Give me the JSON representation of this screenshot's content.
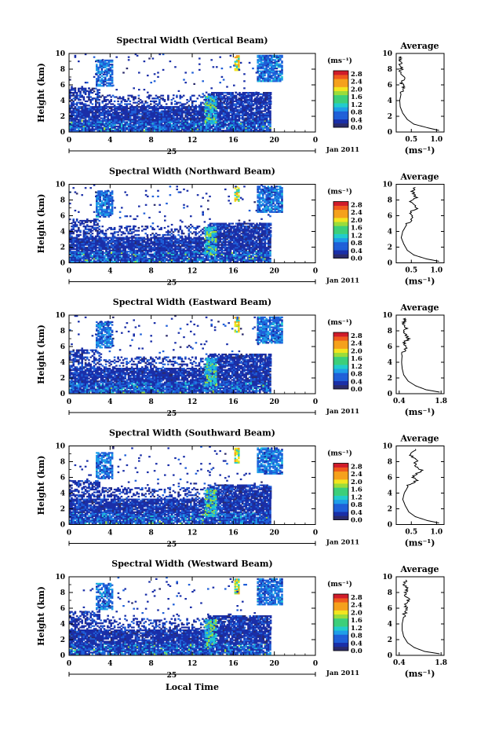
{
  "figure": {
    "xlabel_bottom": "Local Time",
    "date_label": "Jan 2011",
    "day_label": "25",
    "ylabel": "Height (km)",
    "x_ticks": [
      "0",
      "4",
      "8",
      "12",
      "16",
      "20",
      "0"
    ],
    "y_ticks": [
      "0",
      "2",
      "4",
      "6",
      "8",
      "10"
    ],
    "colorbar_unit": "(ms⁻¹)",
    "colorbar_ticks": [
      "0.0",
      "0.4",
      "0.8",
      "1.2",
      "1.6",
      "2.0",
      "2.4",
      "2.8"
    ],
    "avg_title": "Average",
    "avg_xlabel": "(ms⁻¹)",
    "colors": {
      "colormap": [
        "#2b2b6b",
        "#1a2fa8",
        "#1f5fd8",
        "#1f9ee8",
        "#22cccc",
        "#3ccf7a",
        "#9bdc3a",
        "#f2e51f",
        "#f5a11c",
        "#ef5a1d",
        "#d01c2a"
      ],
      "background_mid": "#2f3fb8",
      "background_low": "#3d8fe0"
    }
  },
  "chart_data": [
    {
      "type": "heatmap",
      "title": "Spectral Width (Vertical Beam)",
      "xlabel": "",
      "ylabel": "Height (km)",
      "xlim": [
        0,
        24
      ],
      "ylim": [
        0,
        10
      ],
      "clim": [
        0.0,
        2.8
      ],
      "average": {
        "title": "Average",
        "x_ticks": [
          "0.5",
          "1.0"
        ],
        "xlim": [
          0.2,
          1.15
        ],
        "profile": [
          [
            1.05,
            0.2
          ],
          [
            0.85,
            0.5
          ],
          [
            0.55,
            1.0
          ],
          [
            0.42,
            1.6
          ],
          [
            0.33,
            2.4
          ],
          [
            0.28,
            3.2
          ],
          [
            0.27,
            4.0
          ],
          [
            0.3,
            5.0
          ],
          [
            0.35,
            5.6
          ],
          [
            0.3,
            6.2
          ],
          [
            0.38,
            6.8
          ],
          [
            0.28,
            7.5
          ],
          [
            0.32,
            8.2
          ],
          [
            0.26,
            9.0
          ],
          [
            0.3,
            9.6
          ]
        ]
      }
    },
    {
      "type": "heatmap",
      "title": "Spectral Width (Northward Beam)",
      "xlabel": "",
      "ylabel": "Height (km)",
      "xlim": [
        0,
        24
      ],
      "ylim": [
        0,
        10
      ],
      "clim": [
        0.0,
        2.8
      ],
      "average": {
        "title": "Average",
        "x_ticks": [
          "0.5",
          "1.0"
        ],
        "xlim": [
          0.2,
          1.15
        ],
        "profile": [
          [
            1.05,
            0.2
          ],
          [
            0.8,
            0.5
          ],
          [
            0.55,
            1.0
          ],
          [
            0.42,
            1.6
          ],
          [
            0.35,
            2.4
          ],
          [
            0.3,
            3.2
          ],
          [
            0.33,
            4.0
          ],
          [
            0.42,
            5.0
          ],
          [
            0.55,
            5.8
          ],
          [
            0.48,
            6.4
          ],
          [
            0.62,
            7.0
          ],
          [
            0.5,
            7.8
          ],
          [
            0.6,
            8.4
          ],
          [
            0.52,
            9.0
          ],
          [
            0.58,
            9.6
          ]
        ]
      }
    },
    {
      "type": "heatmap",
      "title": "Spectral Width (Eastward Beam)",
      "xlabel": "",
      "ylabel": "Height (km)",
      "xlim": [
        0,
        24
      ],
      "ylim": [
        0,
        10
      ],
      "clim": [
        0.0,
        2.8
      ],
      "average": {
        "title": "Average",
        "x_ticks": [
          "0.4",
          "1.8"
        ],
        "xlim": [
          0.3,
          1.9
        ],
        "profile": [
          [
            1.75,
            0.2
          ],
          [
            1.3,
            0.5
          ],
          [
            0.95,
            1.0
          ],
          [
            0.7,
            1.6
          ],
          [
            0.55,
            2.4
          ],
          [
            0.5,
            3.2
          ],
          [
            0.48,
            4.0
          ],
          [
            0.5,
            5.0
          ],
          [
            0.62,
            5.8
          ],
          [
            0.55,
            6.4
          ],
          [
            0.7,
            7.0
          ],
          [
            0.58,
            7.8
          ],
          [
            0.65,
            8.4
          ],
          [
            0.55,
            9.0
          ],
          [
            0.62,
            9.6
          ]
        ]
      }
    },
    {
      "type": "heatmap",
      "title": "Spectral Width (Southward Beam)",
      "xlabel": "",
      "ylabel": "Height (km)",
      "xlim": [
        0,
        24
      ],
      "ylim": [
        0,
        10
      ],
      "clim": [
        0.0,
        2.8
      ],
      "average": {
        "title": "Average",
        "x_ticks": [
          "0.5",
          "1.0"
        ],
        "xlim": [
          0.2,
          1.15
        ],
        "profile": [
          [
            1.05,
            0.2
          ],
          [
            0.82,
            0.5
          ],
          [
            0.58,
            1.0
          ],
          [
            0.45,
            1.6
          ],
          [
            0.38,
            2.4
          ],
          [
            0.33,
            3.2
          ],
          [
            0.36,
            4.0
          ],
          [
            0.45,
            5.0
          ],
          [
            0.6,
            5.6
          ],
          [
            0.52,
            6.2
          ],
          [
            0.72,
            6.8
          ],
          [
            0.55,
            7.5
          ],
          [
            0.62,
            8.2
          ],
          [
            0.5,
            8.8
          ],
          [
            0.58,
            9.6
          ]
        ]
      }
    },
    {
      "type": "heatmap",
      "title": "Spectral Width (Westward Beam)",
      "xlabel": "Local Time",
      "ylabel": "Height (km)",
      "xlim": [
        0,
        24
      ],
      "ylim": [
        0,
        10
      ],
      "clim": [
        0.0,
        2.8
      ],
      "average": {
        "title": "Average",
        "x_ticks": [
          "0.4",
          "1.8"
        ],
        "xlim": [
          0.3,
          1.9
        ],
        "profile": [
          [
            1.75,
            0.2
          ],
          [
            1.25,
            0.5
          ],
          [
            0.9,
            1.0
          ],
          [
            0.68,
            1.6
          ],
          [
            0.55,
            2.4
          ],
          [
            0.5,
            3.2
          ],
          [
            0.5,
            4.0
          ],
          [
            0.55,
            5.0
          ],
          [
            0.65,
            5.8
          ],
          [
            0.58,
            6.4
          ],
          [
            0.72,
            7.0
          ],
          [
            0.6,
            7.8
          ],
          [
            0.66,
            8.4
          ],
          [
            0.56,
            9.0
          ],
          [
            0.62,
            9.6
          ]
        ]
      }
    }
  ]
}
